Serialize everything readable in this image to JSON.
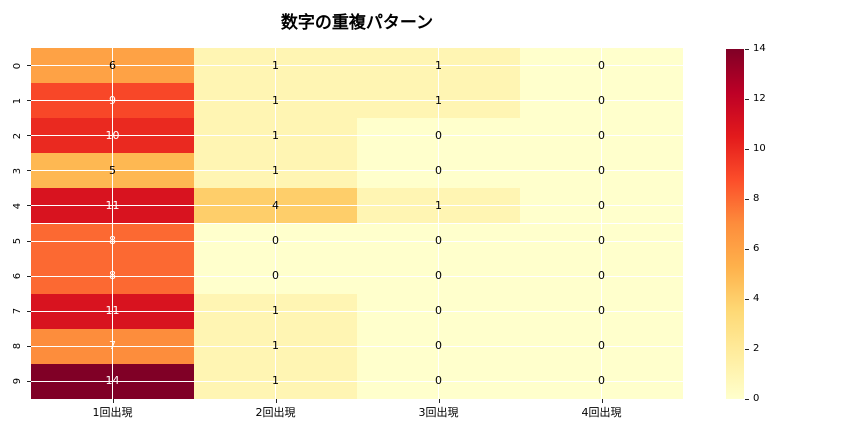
{
  "chart_data": {
    "type": "heatmap",
    "title": "数字の重複パターン",
    "row_labels": [
      "0",
      "1",
      "2",
      "3",
      "4",
      "5",
      "6",
      "7",
      "8",
      "9"
    ],
    "col_labels": [
      "1回出現",
      "2回出現",
      "3回出現",
      "4回出現"
    ],
    "values": [
      [
        6,
        1,
        1,
        0
      ],
      [
        9,
        1,
        1,
        0
      ],
      [
        10,
        1,
        0,
        0
      ],
      [
        5,
        1,
        0,
        0
      ],
      [
        11,
        4,
        1,
        0
      ],
      [
        8,
        0,
        0,
        0
      ],
      [
        8,
        0,
        0,
        0
      ],
      [
        11,
        1,
        0,
        0
      ],
      [
        7,
        1,
        0,
        0
      ],
      [
        14,
        1,
        0,
        0
      ]
    ],
    "vmin": 0,
    "vmax": 14,
    "colormap": "YlOrRd",
    "colormap_stops": [
      "#ffffcc",
      "#ffeda0",
      "#fed976",
      "#feb24c",
      "#fd8d3c",
      "#fc4e2a",
      "#e31a1c",
      "#bd0026",
      "#800026"
    ],
    "colorbar_ticks": [
      0,
      2,
      4,
      6,
      8,
      10,
      12,
      14
    ],
    "grid": true,
    "grid_color": "#ffffff",
    "annotated": true,
    "annot_dark_color": "#000000",
    "annot_light_color": "#ffffff",
    "legend_position": "right-colorbar",
    "xlabel": "",
    "ylabel": ""
  }
}
